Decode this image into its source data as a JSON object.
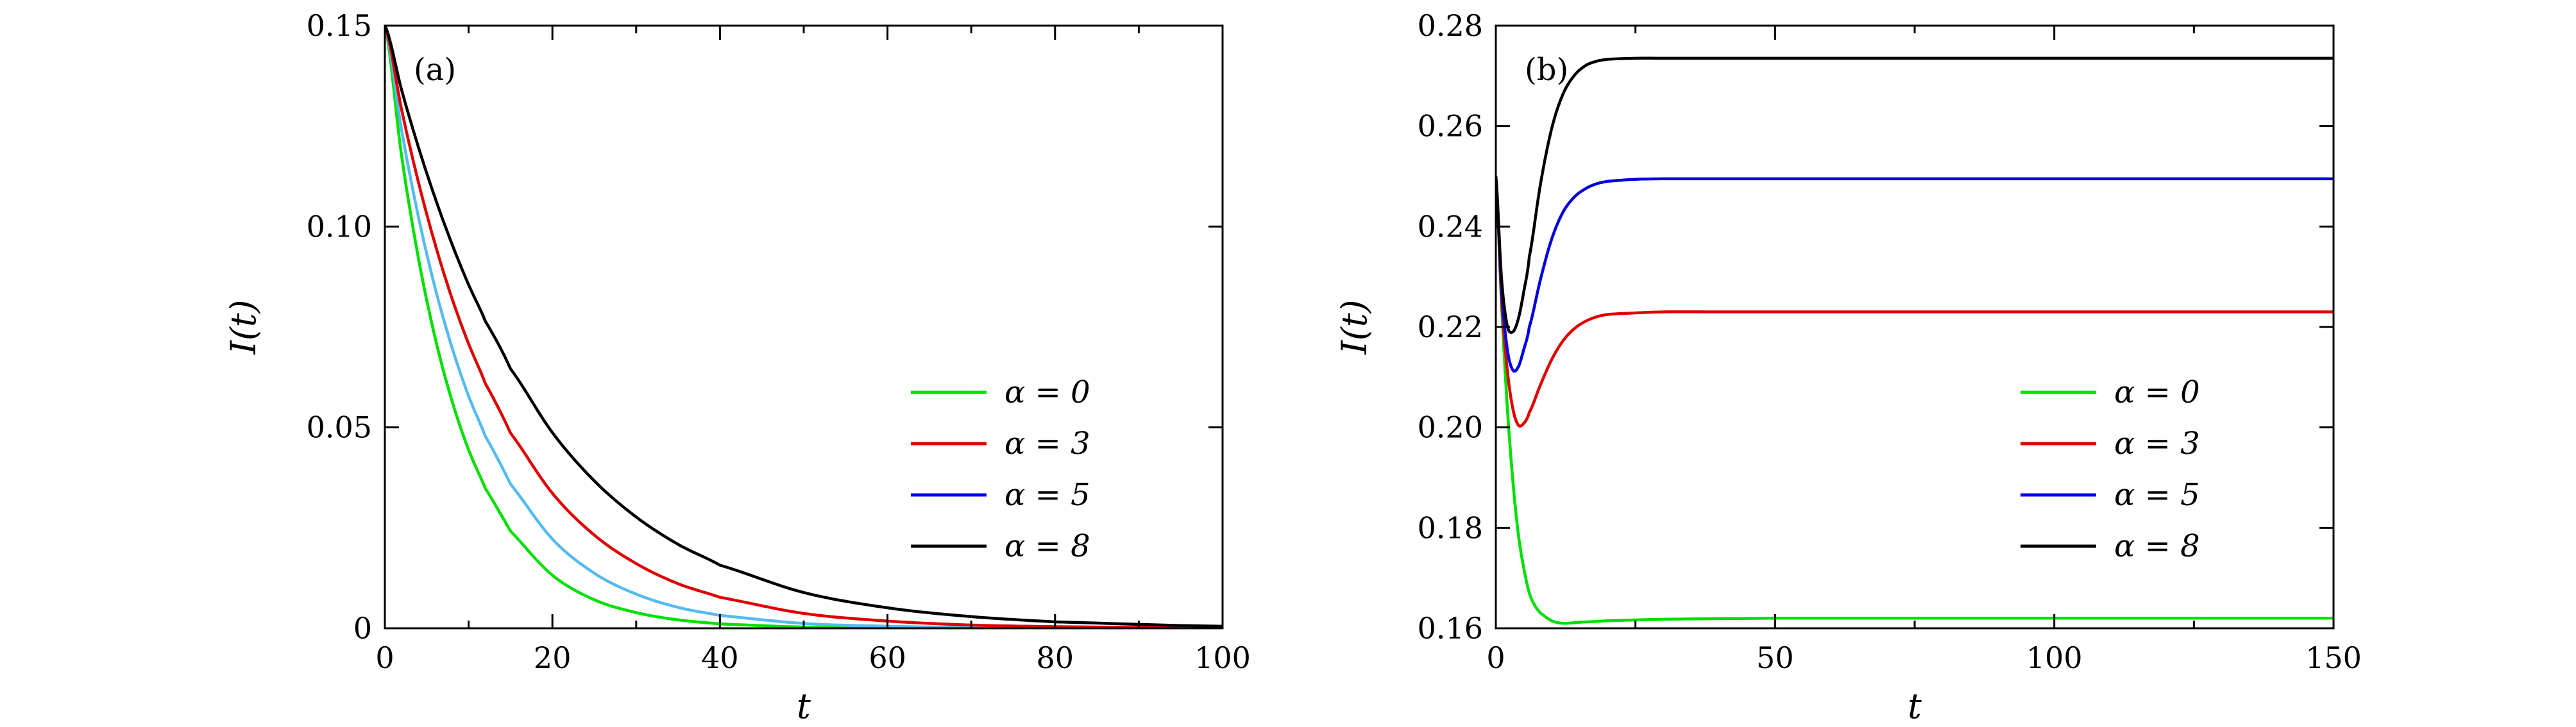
{
  "chart_data": [
    {
      "type": "line",
      "panel": "(a)",
      "xlabel": "t",
      "ylabel": "I(t)",
      "xlim": [
        0,
        100
      ],
      "ylim": [
        0,
        0.15
      ],
      "xticks": [
        0,
        20,
        40,
        60,
        80,
        100
      ],
      "xtick_labels": [
        "0",
        "20",
        "40",
        "60",
        "80",
        "100"
      ],
      "xminor": [
        10,
        30,
        50,
        70,
        90
      ],
      "yticks": [
        0,
        0.05,
        0.1,
        0.15
      ],
      "ytick_labels": [
        "0",
        "0.05",
        "0.10",
        "0.15"
      ],
      "grid": false,
      "legend": "center-right",
      "legend_entries": [
        {
          "label": "α = 0",
          "color": "#00e000"
        },
        {
          "label": "α = 3",
          "color": "#e00000"
        },
        {
          "label": "α = 5",
          "color": "#0000e0"
        },
        {
          "label": "α = 8",
          "color": "#000000"
        }
      ],
      "series": [
        {
          "color": "#00e000",
          "x": [
            0,
            2,
            4,
            6,
            8,
            10,
            12,
            15,
            20,
            25,
            30,
            35,
            40,
            50,
            60,
            70,
            80,
            100
          ],
          "values": [
            0.15,
            0.1176,
            0.0922,
            0.0723,
            0.0567,
            0.0444,
            0.0348,
            0.0242,
            0.0132,
            0.0071,
            0.0039,
            0.0021,
            0.0011,
            0.0003,
            0.0001,
            0.0,
            0.0,
            0.0
          ]
        },
        {
          "color": "#55bbee",
          "x": [
            0,
            2,
            4,
            6,
            8,
            10,
            12,
            15,
            20,
            25,
            30,
            35,
            40,
            50,
            60,
            70,
            80,
            100
          ],
          "values": [
            0.15,
            0.124,
            0.1025,
            0.0847,
            0.07,
            0.0578,
            0.0478,
            0.0359,
            0.0222,
            0.0137,
            0.0085,
            0.0052,
            0.0032,
            0.0012,
            0.0005,
            0.0002,
            0.0001,
            0.0
          ]
        },
        {
          "color": "#e00000",
          "x": [
            0,
            2,
            4,
            6,
            8,
            10,
            12,
            15,
            20,
            25,
            30,
            35,
            40,
            50,
            60,
            70,
            80,
            100
          ],
          "values": [
            0.15,
            0.1291,
            0.1111,
            0.0956,
            0.0822,
            0.0708,
            0.0609,
            0.0486,
            0.0336,
            0.0232,
            0.0161,
            0.0111,
            0.0077,
            0.0037,
            0.0018,
            0.0008,
            0.0004,
            0.0001
          ]
        },
        {
          "color": "#000000",
          "x": [
            0,
            2,
            4,
            6,
            8,
            10,
            12,
            15,
            20,
            25,
            30,
            35,
            40,
            50,
            60,
            70,
            80,
            100
          ],
          "values": [
            0.15,
            0.134,
            0.1198,
            0.1071,
            0.0957,
            0.0855,
            0.0764,
            0.0646,
            0.0487,
            0.0367,
            0.0277,
            0.0209,
            0.0157,
            0.0089,
            0.0051,
            0.0029,
            0.0016,
            0.0005
          ]
        }
      ]
    },
    {
      "type": "line",
      "panel": "(b)",
      "xlabel": "t",
      "ylabel": "I(t)",
      "xlim": [
        0,
        150
      ],
      "ylim": [
        0.16,
        0.28
      ],
      "xticks": [
        0,
        50,
        100,
        150
      ],
      "xtick_labels": [
        "0",
        "50",
        "100",
        "150"
      ],
      "xminor": [
        25,
        75,
        125
      ],
      "yticks": [
        0.16,
        0.18,
        0.2,
        0.22,
        0.24,
        0.26,
        0.28
      ],
      "ytick_labels": [
        "0.16",
        "0.18",
        "0.20",
        "0.22",
        "0.24",
        "0.26",
        "0.28"
      ],
      "grid": false,
      "legend": "lower-right",
      "legend_entries": [
        {
          "label": "α = 0",
          "color": "#00e000"
        },
        {
          "label": "α = 3",
          "color": "#e00000"
        },
        {
          "label": "α = 5",
          "color": "#0000e0"
        },
        {
          "label": "α = 8",
          "color": "#000000"
        }
      ],
      "series": [
        {
          "color": "#00e000",
          "x": [
            0,
            1,
            2,
            3,
            4,
            5,
            6,
            7,
            8,
            10,
            12,
            15,
            20,
            30,
            50,
            100,
            150
          ],
          "values": [
            0.25,
            0.225,
            0.205,
            0.19,
            0.179,
            0.172,
            0.167,
            0.1645,
            0.163,
            0.1615,
            0.161,
            0.1612,
            0.1615,
            0.1618,
            0.162,
            0.162,
            0.162
          ]
        },
        {
          "color": "#e00000",
          "x": [
            0,
            1,
            2,
            3,
            4,
            5,
            6,
            8,
            10,
            12,
            14,
            16,
            18,
            20,
            25,
            30,
            40,
            60,
            100,
            150
          ],
          "values": [
            0.25,
            0.226,
            0.212,
            0.204,
            0.2005,
            0.2008,
            0.203,
            0.2085,
            0.2135,
            0.2172,
            0.2196,
            0.2211,
            0.222,
            0.2225,
            0.2228,
            0.223,
            0.223,
            0.223,
            0.223,
            0.223
          ]
        },
        {
          "color": "#0000e0",
          "x": [
            0,
            1,
            2,
            3,
            4,
            5,
            6,
            8,
            10,
            12,
            14,
            16,
            18,
            20,
            25,
            30,
            40,
            60,
            100,
            150
          ],
          "values": [
            0.25,
            0.228,
            0.216,
            0.2115,
            0.212,
            0.2155,
            0.22,
            0.2295,
            0.2375,
            0.2428,
            0.2458,
            0.2475,
            0.2485,
            0.249,
            0.2494,
            0.2495,
            0.2495,
            0.2495,
            0.2495,
            0.2495
          ]
        },
        {
          "color": "#000000",
          "x": [
            0,
            1,
            2,
            3,
            4,
            5,
            6,
            8,
            10,
            12,
            14,
            16,
            18,
            20,
            25,
            30,
            40,
            60,
            100,
            150
          ],
          "values": [
            0.25,
            0.23,
            0.2205,
            0.219,
            0.2215,
            0.227,
            0.234,
            0.2485,
            0.2595,
            0.2663,
            0.27,
            0.272,
            0.2729,
            0.2733,
            0.2735,
            0.2735,
            0.2735,
            0.2735,
            0.2735,
            0.2735
          ]
        }
      ]
    }
  ]
}
